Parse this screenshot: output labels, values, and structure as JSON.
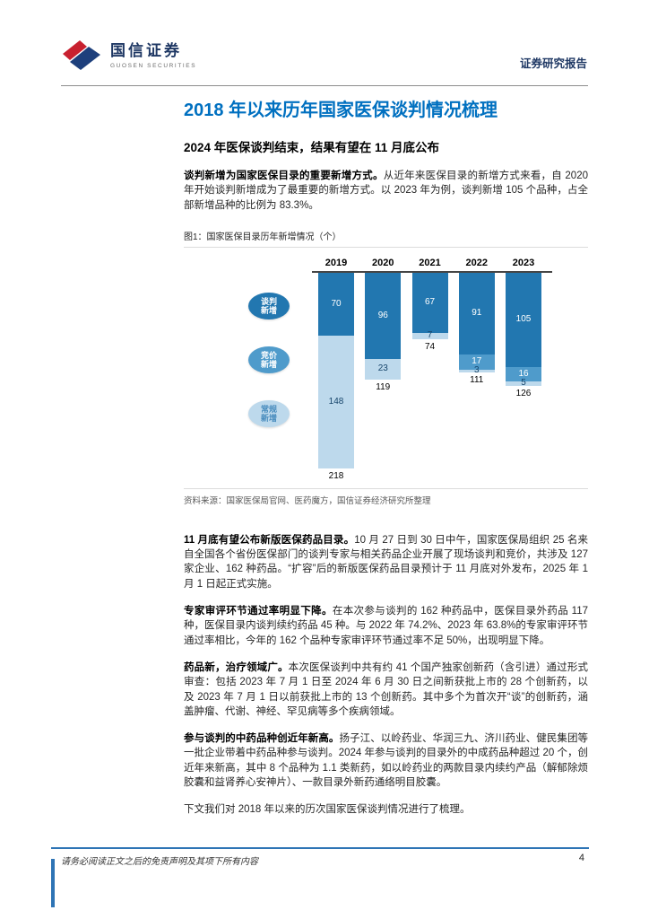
{
  "header": {
    "logo_cn": "国信证券",
    "logo_en": "GUOSEN SECURITIES",
    "report_type": "证券研究报告"
  },
  "article": {
    "title": "2018 年以来历年国家医保谈判情况梳理",
    "subtitle": "2024 年医保谈判结束，结果有望在 11 月底公布",
    "intro": {
      "lead": "谈判新增为国家医保目录的重要新增方式。",
      "text": "从近年来医保目录的新增方式来看，自 2020 年开始谈判新增成为了最重要的新增方式。以 2023 年为例，谈判新增 105 个品种，占全部新增品种的比例为 83.3%。"
    },
    "paragraphs": [
      {
        "lead": "11 月底有望公布新版医保药品目录。",
        "text": "10 月 27 日到 30 日中午，国家医保局组织 25 名来自全国各个省份医保部门的谈判专家与相关药品企业开展了现场谈判和竞价，共涉及 127 家企业、162 种药品。“扩容”后的新版医保药品目录预计于 11 月底对外发布，2025 年 1 月 1 日起正式实施。"
      },
      {
        "lead": "专家审评环节通过率明显下降。",
        "text": "在本次参与谈判的 162 种药品中，医保目录外药品 117 种，医保目录内谈判续约药品 45 种。与 2022 年 74.2%、2023 年 63.8%的专家审评环节通过率相比，今年的 162 个品种专家审评环节通过率不足 50%，出现明显下降。"
      },
      {
        "lead": "药品新，治疗领域广。",
        "text": "本次医保谈判中共有约 41 个国产独家创新药（含引进）通过形式审查：包括 2023 年 7 月 1 日至 2024 年 6 月 30 日之间新获批上市的 28 个创新药，以及 2023 年 7 月 1 日以前获批上市的 13 个创新药。其中多个为首次开“谈”的创新药，涵盖肿瘤、代谢、神经、罕见病等多个疾病领域。"
      },
      {
        "lead": "参与谈判的中药品种创近年新高。",
        "text": "扬子江、以岭药业、华润三九、济川药业、健民集团等一批企业带着中药品种参与谈判。2024 年参与谈判的目录外的中成药品种超过 20 个，创近年来新高，其中 8 个品种为 1.1 类新药，如以岭药业的两款目录内续约产品（解郁除烦胶囊和益肾养心安神片）、一款目录外新药通络明目胶囊。"
      }
    ],
    "closing": "下文我们对 2018 年以来的历次国家医保谈判情况进行了梳理。"
  },
  "figure": {
    "caption": "图1：国家医保目录历年新增情况（个）",
    "source": "资料来源：国家医保局官网、医药魔方，国信证券经济研究所整理"
  },
  "chart_data": {
    "type": "bar",
    "subtype": "stacked-hanging-from-top-axis",
    "title": "国家医保目录历年新增情况（个）",
    "categories": [
      "2019",
      "2020",
      "2021",
      "2022",
      "2023"
    ],
    "series": [
      {
        "name": "谈判新增",
        "color": "#2277b0",
        "values": [
          70,
          96,
          67,
          91,
          105
        ]
      },
      {
        "name": "竞价新增",
        "color": "#4f9bcb",
        "values": [
          0,
          0,
          0,
          17,
          16
        ]
      },
      {
        "name": "常规新增",
        "color": "#bdd9ec",
        "values": [
          148,
          23,
          7,
          3,
          5
        ]
      }
    ],
    "totals": [
      218,
      119,
      74,
      111,
      126
    ],
    "legend_position": "left",
    "axis_note": "bars hang downward from top baseline, year labels above axis"
  },
  "footer": {
    "disclaimer": "请务必阅读正文之后的免责声明及其项下所有内容",
    "page_number": "4"
  }
}
